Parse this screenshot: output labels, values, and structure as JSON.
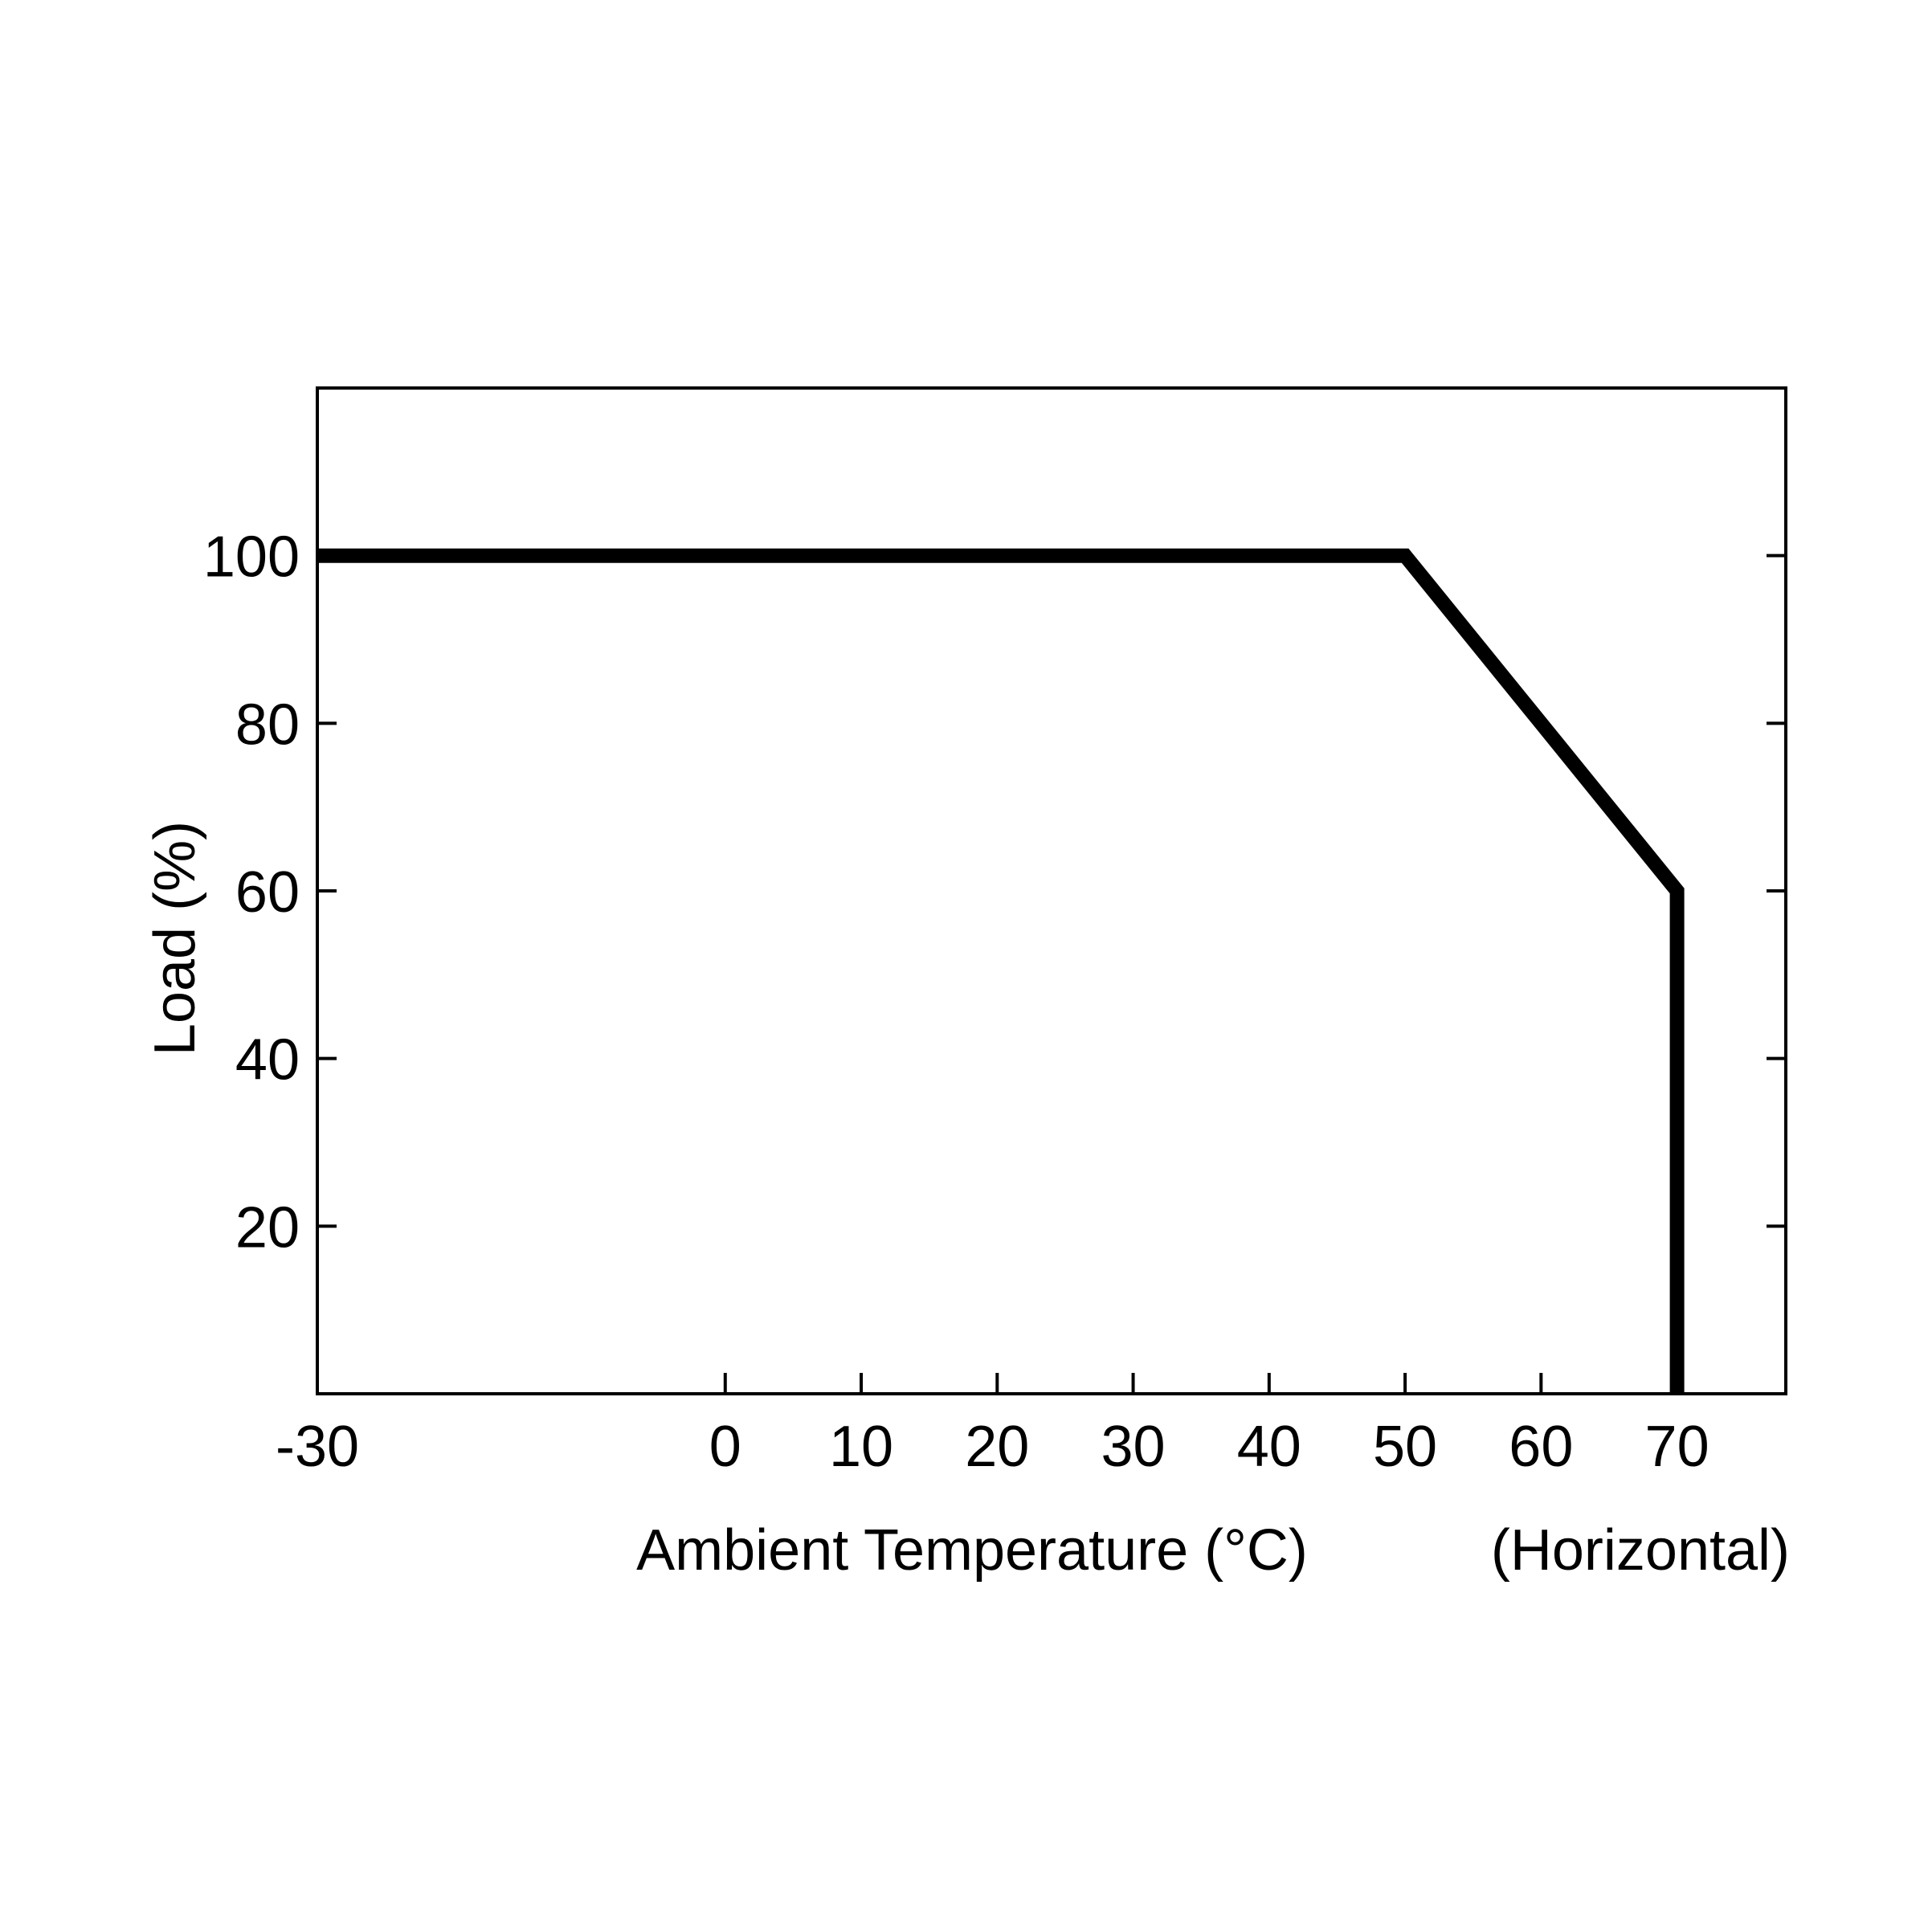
{
  "chart_data": {
    "type": "line",
    "title": "",
    "xlabel": "Ambient Temperature (°C)",
    "xlabel_note": "(Horizontal)",
    "ylabel": "Load (%)",
    "xlim": [
      -30,
      78
    ],
    "ylim": [
      0,
      120
    ],
    "x_ticks": [
      -30,
      0,
      10,
      20,
      30,
      40,
      50,
      60,
      70
    ],
    "y_ticks": [
      20,
      40,
      60,
      80,
      100
    ],
    "grid": false,
    "legend": "none",
    "series": [
      {
        "x": [
          -30,
          50,
          70,
          70
        ],
        "y": [
          100,
          100,
          60,
          0
        ]
      }
    ],
    "colors": {
      "line": "#000000",
      "axes": "#000000",
      "background": "#ffffff"
    }
  }
}
